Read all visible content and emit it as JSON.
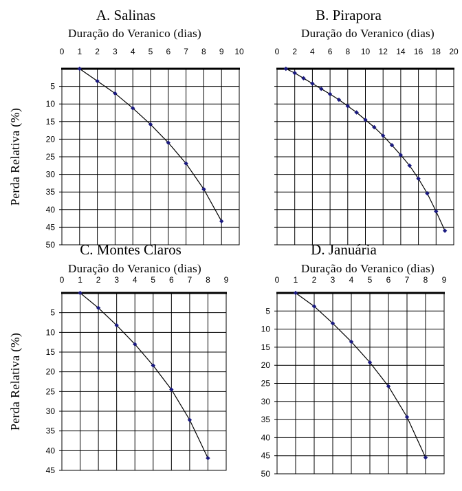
{
  "chart_data": [
    {
      "type": "line",
      "title": "A. Salinas",
      "xlabel": "Duração do Veranico (dias)",
      "ylabel": "Perda Relativa (%)",
      "xlim": [
        0,
        10
      ],
      "xticks": [
        0,
        1,
        2,
        3,
        4,
        5,
        6,
        7,
        8,
        9,
        10
      ],
      "ylim": [
        0,
        50
      ],
      "yticks": [
        5,
        10,
        15,
        20,
        25,
        30,
        35,
        40,
        45,
        50
      ],
      "y_inverted": true,
      "x_axis_position": "top",
      "grid": true,
      "series": [
        {
          "x": [
            1,
            2,
            3,
            4,
            5,
            6,
            7,
            8,
            9
          ],
          "y": [
            0,
            3.5,
            7,
            11.2,
            15.8,
            21,
            26.9,
            34.2,
            43.3
          ]
        }
      ]
    },
    {
      "type": "line",
      "title": "B. Pirapora",
      "xlabel": "Duração do Veranico (dias)",
      "ylabel": "",
      "xlim": [
        0,
        20
      ],
      "xticks": [
        0,
        2,
        4,
        6,
        8,
        10,
        12,
        14,
        16,
        18,
        20
      ],
      "ylim": [
        0,
        50
      ],
      "yticks": [],
      "y_inverted": true,
      "x_axis_position": "top",
      "grid": true,
      "series": [
        {
          "x": [
            1,
            2,
            3,
            4,
            5,
            6,
            7,
            8,
            9,
            10,
            11,
            12,
            13,
            14,
            15,
            16,
            17,
            18,
            19
          ],
          "y": [
            0,
            1.2,
            2.7,
            4.2,
            5.7,
            7.2,
            8.8,
            10.6,
            12.4,
            14.5,
            16.6,
            19,
            21.7,
            24.5,
            27.5,
            31.2,
            35.4,
            40.5,
            46
          ]
        }
      ]
    },
    {
      "type": "line",
      "title": "C. Montes Claros",
      "xlabel": "Duração do Veranico (dias)",
      "ylabel": "Perda Relativa (%)",
      "xlim": [
        0,
        9
      ],
      "xticks": [
        0,
        1,
        2,
        3,
        4,
        5,
        6,
        7,
        8,
        9
      ],
      "ylim": [
        0,
        45
      ],
      "yticks": [
        5,
        10,
        15,
        20,
        25,
        30,
        35,
        40,
        45
      ],
      "y_inverted": true,
      "x_axis_position": "top",
      "grid": true,
      "series": [
        {
          "x": [
            1,
            2,
            3,
            4,
            5,
            6,
            7,
            8
          ],
          "y": [
            0,
            3.8,
            8.2,
            13,
            18.4,
            24.5,
            32.2,
            41.9
          ]
        }
      ]
    },
    {
      "type": "line",
      "title": "D. Januária",
      "xlabel": "Duração do Veranico (dias)",
      "ylabel": "",
      "xlim": [
        0,
        9
      ],
      "xticks": [
        0,
        1,
        2,
        3,
        4,
        5,
        6,
        7,
        8,
        9
      ],
      "ylim": [
        0,
        50
      ],
      "yticks": [
        5,
        10,
        15,
        20,
        25,
        30,
        35,
        40,
        45,
        50
      ],
      "y_inverted": true,
      "x_axis_position": "top",
      "grid": true,
      "series": [
        {
          "x": [
            1,
            2,
            3,
            4,
            5,
            6,
            7,
            8
          ],
          "y": [
            0,
            3.7,
            8.4,
            13.5,
            19.2,
            25.8,
            34.3,
            45.5
          ]
        }
      ]
    }
  ],
  "colors": {
    "marker": "#1a1a80",
    "line": "#000000",
    "grid": "#000000"
  }
}
